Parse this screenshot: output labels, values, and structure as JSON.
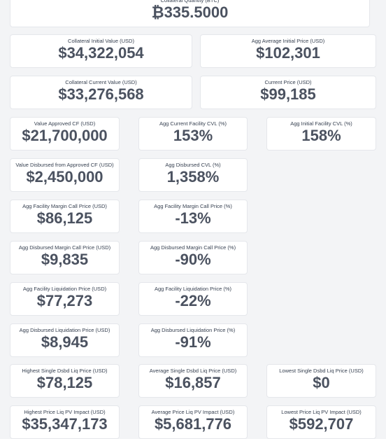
{
  "rows": [
    [
      {
        "label": "Collateral Quantity (BTC)",
        "value": "₿335.5000"
      }
    ],
    [
      {
        "label": "Collateral Initial Value (USD)",
        "value": "$34,322,054"
      },
      {
        "label": "Agg Average Initial Price (USD)",
        "value": "$102,301"
      }
    ],
    [
      {
        "label": "Collateral Current Value (USD)",
        "value": "$33,276,568"
      },
      {
        "label": "Current Price (USD)",
        "value": "$99,185"
      }
    ],
    [
      {
        "label": "Value Approved CF (USD)",
        "value": "$21,700,000"
      },
      {
        "label": "Agg Current Facility CVL (%)",
        "value": "153%"
      },
      {
        "label": "Agg Initial Facility CVL (%)",
        "value": "158%"
      }
    ],
    [
      {
        "label": "Value Disbursed from Approved CF (USD)",
        "value": "$2,450,000"
      },
      {
        "label": "Agg Disbursed CVL (%)",
        "value": "1,358%"
      }
    ],
    [
      {
        "label": "Agg Facility Margin Call Price (USD)",
        "value": "$86,125"
      },
      {
        "label": "Agg Facility Margin Call Price (%)",
        "value": "-13%"
      }
    ],
    [
      {
        "label": "Agg Disbursed Margin Call Price (USD)",
        "value": "$9,835"
      },
      {
        "label": "Agg Disbursed Margin Call Price (%)",
        "value": "-90%"
      }
    ],
    [
      {
        "label": "Agg Facility Liquidation Price (USD)",
        "value": "$77,273"
      },
      {
        "label": "Agg Facility Liquidation Price (%)",
        "value": "-22%"
      }
    ],
    [
      {
        "label": "Agg Disbursed Liquidation Price (USD)",
        "value": "$8,945"
      },
      {
        "label": "Agg Disbursed Liquidation Price (%)",
        "value": "-91%"
      }
    ],
    [
      {
        "label": "Highest Single Dsbd Liq Price (USD)",
        "value": "$78,125"
      },
      {
        "label": "Average Single Dsbd Liq Price (USD)",
        "value": "$16,857"
      },
      {
        "label": "Lowest Single Dsbd Liq Price (USD)",
        "value": "$0"
      }
    ],
    [
      {
        "label": "Highest Price Liq PV Impact (USD)",
        "value": "$35,347,173"
      },
      {
        "label": "Average Price Liq PV Impact (USD)",
        "value": "$5,681,776"
      },
      {
        "label": "Lowest Price Liq PV Impact (USD)",
        "value": "$592,707"
      }
    ]
  ]
}
